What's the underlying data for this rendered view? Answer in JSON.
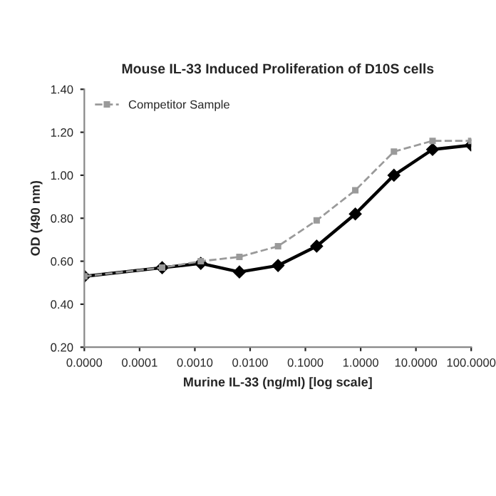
{
  "chart_data": {
    "type": "line",
    "title": "Mouse IL-33 Induced Proliferation of D10S cells",
    "xlabel": "Murine IL-33 (ng/ml) [log scale]",
    "ylabel": "OD (490 nm)",
    "log": "x",
    "legend": "top left",
    "xlim": [
      1e-05,
      100
    ],
    "xticks": [
      {
        "value": 1e-05,
        "label": "0.0000"
      },
      {
        "value": 0.0001,
        "label": "0.0001"
      },
      {
        "value": 0.001,
        "label": "0.0010"
      },
      {
        "value": 0.01,
        "label": "0.0100"
      },
      {
        "value": 0.1,
        "label": "0.1000"
      },
      {
        "value": 1,
        "label": "1.0000"
      },
      {
        "value": 10,
        "label": "10.0000"
      },
      {
        "value": 100,
        "label": "100.0000"
      }
    ],
    "ylim": [
      0.2,
      1.4
    ],
    "yticks": [
      {
        "value": 0.2,
        "label": "0.20"
      },
      {
        "value": 0.4,
        "label": "0.40"
      },
      {
        "value": 0.6,
        "label": "0.60"
      },
      {
        "value": 0.8,
        "label": "0.80"
      },
      {
        "value": 1.0,
        "label": "1.00"
      },
      {
        "value": 1.2,
        "label": "1.20"
      },
      {
        "value": 1.4,
        "label": "1.40"
      }
    ],
    "x": [
      1e-05,
      0.000256,
      0.00128,
      0.0064,
      0.032,
      0.16,
      0.8,
      4,
      20,
      100
    ],
    "series": [
      {
        "color": "#000000",
        "marker": "diamond",
        "line_style": "solid",
        "values": [
          0.53,
          0.57,
          0.59,
          0.55,
          0.58,
          0.67,
          0.82,
          1.0,
          1.12,
          1.14
        ]
      },
      {
        "name": "Competitor Sample",
        "color": "#9a9a9a",
        "marker": "square",
        "line_style": "dashed",
        "values": [
          0.53,
          0.57,
          0.6,
          0.62,
          0.67,
          0.79,
          0.93,
          1.11,
          1.16,
          1.16
        ]
      }
    ]
  }
}
